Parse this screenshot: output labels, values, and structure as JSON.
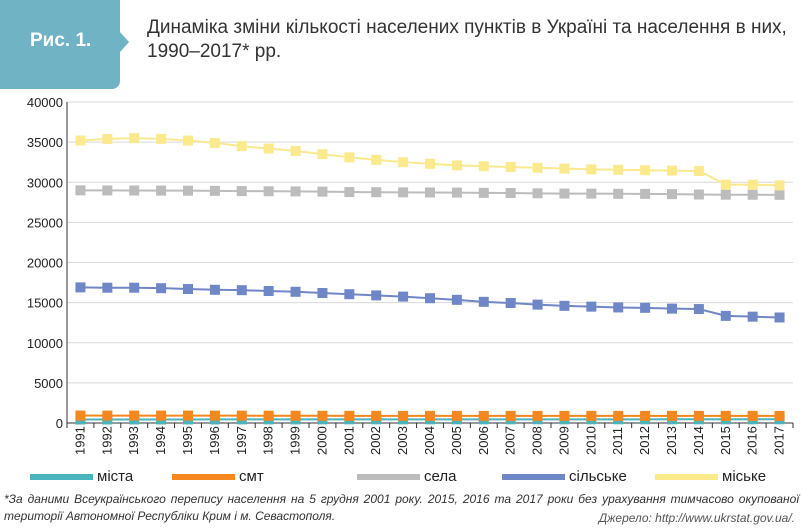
{
  "figure_label": "Рис. 1.",
  "title": "Динаміка зміни кількості населених пунктів в Україні та населення в них, 1990–2017* рр.",
  "footnote": "*За даними Всеукраїнського перепису населення на 5 грудня 2001 року. 2015, 2016 та 2017 роки без урахування тимчасово окупованої території Автономної Республіки Крим і м. Севастополя.",
  "source": "Джерело: http://www.ukrstat.gov.ua/.",
  "colors": {
    "accent": "#6fb3c4",
    "grid": "#d9d9d9",
    "axis": "#333333"
  },
  "chart_data": {
    "type": "line",
    "x": [
      "1991",
      "1992",
      "1993",
      "1994",
      "1995",
      "1996",
      "1997",
      "1998",
      "1999",
      "2000",
      "2001",
      "2002",
      "2003",
      "2004",
      "2005",
      "2006",
      "2007",
      "2008",
      "2009",
      "2010",
      "2011",
      "2012",
      "2013",
      "2014",
      "2015",
      "2016",
      "2017"
    ],
    "ylim": [
      0,
      40000
    ],
    "yticks": [
      "0",
      "5000",
      "10000",
      "15000",
      "20000",
      "25000",
      "30000",
      "35000",
      "40000"
    ],
    "grid": true,
    "legend_position": "bottom",
    "series": [
      {
        "name": "міста",
        "color": "#4bb3bb",
        "marker": "square",
        "values": [
          434,
          436,
          439,
          440,
          442,
          444,
          446,
          448,
          449,
          451,
          454,
          454,
          454,
          457,
          457,
          459,
          459,
          459,
          459,
          459,
          459,
          459,
          460,
          460,
          459,
          460,
          460
        ]
      },
      {
        "name": "смт",
        "color": "#f5871f",
        "marker": "square",
        "values": [
          927,
          925,
          923,
          921,
          920,
          917,
          913,
          907,
          904,
          900,
          893,
          889,
          886,
          885,
          885,
          886,
          886,
          884,
          885,
          885,
          885,
          885,
          885,
          885,
          885,
          885,
          885
        ]
      },
      {
        "name": "села",
        "color": "#bcbcbc",
        "marker": "square",
        "values": [
          28990,
          28980,
          28970,
          28960,
          28950,
          28930,
          28900,
          28880,
          28860,
          28830,
          28780,
          28760,
          28740,
          28720,
          28710,
          28680,
          28660,
          28620,
          28590,
          28580,
          28560,
          28550,
          28520,
          28470,
          28450,
          28440,
          28430
        ]
      },
      {
        "name": "сільське",
        "color": "#6f87c6",
        "marker": "square",
        "values": [
          16900,
          16860,
          16860,
          16800,
          16700,
          16600,
          16550,
          16450,
          16350,
          16200,
          16050,
          15900,
          15750,
          15550,
          15350,
          15100,
          14950,
          14750,
          14600,
          14500,
          14400,
          14350,
          14250,
          14200,
          13350,
          13250,
          13150
        ]
      },
      {
        "name": "міське",
        "color": "#fbe98e",
        "marker": "square",
        "values": [
          35200,
          35400,
          35500,
          35400,
          35200,
          34900,
          34500,
          34200,
          33900,
          33500,
          33100,
          32800,
          32500,
          32300,
          32100,
          32000,
          31900,
          31800,
          31700,
          31600,
          31550,
          31500,
          31450,
          31400,
          29700,
          29700,
          29600
        ]
      }
    ]
  }
}
